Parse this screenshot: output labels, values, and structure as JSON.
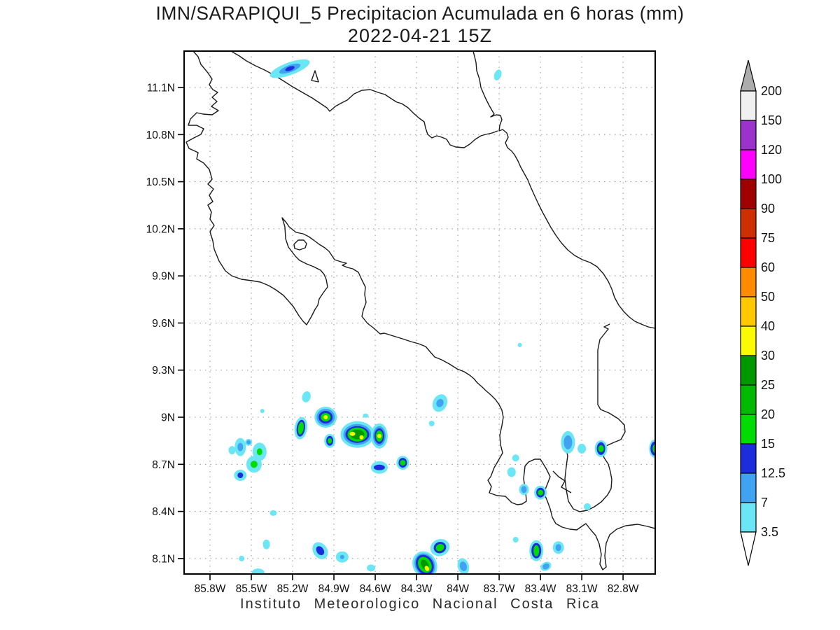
{
  "title": {
    "line1": "IMN/SARAPIQUI_5 Precipitacion Acumulada en 6 horas (mm)",
    "line2": "2022-04-21 15Z"
  },
  "footer": "Instituto Meteorologico Nacional Costa Rica",
  "axes": {
    "lat_ticks": [
      {
        "label": "11.1N",
        "deg": 11.1
      },
      {
        "label": "10.8N",
        "deg": 10.8
      },
      {
        "label": "10.5N",
        "deg": 10.5
      },
      {
        "label": "10.2N",
        "deg": 10.2
      },
      {
        "label": "9.9N",
        "deg": 9.9
      },
      {
        "label": "9.6N",
        "deg": 9.6
      },
      {
        "label": "9.3N",
        "deg": 9.3
      },
      {
        "label": "9N",
        "deg": 9.0
      },
      {
        "label": "8.7N",
        "deg": 8.7
      },
      {
        "label": "8.4N",
        "deg": 8.4
      },
      {
        "label": "8.1N",
        "deg": 8.1
      }
    ],
    "lon_ticks": [
      {
        "label": "85.8W",
        "deg": 85.8
      },
      {
        "label": "85.5W",
        "deg": 85.5
      },
      {
        "label": "85.2W",
        "deg": 85.2
      },
      {
        "label": "84.9W",
        "deg": 84.9
      },
      {
        "label": "84.6W",
        "deg": 84.6
      },
      {
        "label": "84.3W",
        "deg": 84.3
      },
      {
        "label": "84W",
        "deg": 84.0
      },
      {
        "label": "83.7W",
        "deg": 83.7
      },
      {
        "label": "83.4W",
        "deg": 83.4
      },
      {
        "label": "83.1W",
        "deg": 83.1
      },
      {
        "label": "82.8W",
        "deg": 82.8
      }
    ]
  },
  "colorbar": {
    "tick_labels_top_to_bottom": [
      "200",
      "150",
      "120",
      "100",
      "90",
      "75",
      "60",
      "50",
      "40",
      "30",
      "25",
      "20",
      "15",
      "12.5",
      "7",
      "3.5"
    ],
    "band_colors_top_to_bottom": [
      "#F0F0F0",
      "#9933CC",
      "#FF00FF",
      "#A00000",
      "#CC3000",
      "#FF0000",
      "#FF8C00",
      "#FFC800",
      "#FAFA00",
      "#009800",
      "#00BA00",
      "#00DC00",
      "#1C2DDB",
      "#42A2F2",
      "#6BE6F5"
    ],
    "over_arrow_color": "#ACACAC",
    "under_arrow_color": "#FFFFFF"
  },
  "level_colors_mm": {
    "3.5": "#6BE6F5",
    "7": "#42A2F2",
    "12.5": "#1C2DDB",
    "15": "#00DC00",
    "20": "#00BA00",
    "25": "#009800",
    "30": "#FAFA00"
  },
  "precipitation_cells": [
    {
      "lon": 85.22,
      "lat": 11.22,
      "rot": -20,
      "layers": [
        [
          3.5,
          30,
          9
        ],
        [
          7,
          16,
          5
        ],
        [
          12.5,
          7,
          3
        ]
      ]
    },
    {
      "lon": 83.71,
      "lat": 11.18,
      "rot": 20,
      "layers": [
        [
          3.5,
          5,
          8
        ]
      ]
    },
    {
      "lon": 83.55,
      "lat": 9.46,
      "rot": 0,
      "layers": [
        [
          3.5,
          3,
          3
        ]
      ]
    },
    {
      "lon": 85.1,
      "lat": 9.13,
      "rot": 15,
      "layers": [
        [
          3.5,
          6,
          8
        ]
      ]
    },
    {
      "lon": 84.96,
      "lat": 9.0,
      "rot": 0,
      "layers": [
        [
          3.5,
          16,
          15
        ],
        [
          7,
          13,
          12
        ],
        [
          12.5,
          10,
          9
        ],
        [
          15,
          7,
          6
        ],
        [
          30,
          3,
          3
        ]
      ]
    },
    {
      "lon": 85.14,
      "lat": 8.93,
      "rot": 8,
      "layers": [
        [
          3.5,
          9,
          16
        ],
        [
          12.5,
          6,
          12
        ],
        [
          15,
          4,
          9
        ]
      ]
    },
    {
      "lon": 85.42,
      "lat": 9.04,
      "rot": 0,
      "layers": [
        [
          3.5,
          3,
          3
        ]
      ]
    },
    {
      "lon": 84.93,
      "lat": 8.85,
      "rot": 0,
      "layers": [
        [
          3.5,
          8,
          10
        ],
        [
          12.5,
          5,
          7
        ],
        [
          15,
          3,
          4
        ]
      ]
    },
    {
      "lon": 84.73,
      "lat": 8.89,
      "rot": 0,
      "layers": [
        [
          3.5,
          24,
          19
        ],
        [
          7,
          20,
          15
        ],
        [
          12.5,
          17,
          12
        ],
        [
          15,
          14,
          10
        ],
        [
          25,
          10,
          7
        ],
        [
          30,
          4,
          3,
          -7,
          -1
        ],
        [
          30,
          3,
          3,
          6,
          4
        ]
      ]
    },
    {
      "lon": 84.57,
      "lat": 8.88,
      "rot": 0,
      "layers": [
        [
          3.5,
          12,
          18
        ],
        [
          7,
          9,
          14
        ],
        [
          12.5,
          7,
          11
        ],
        [
          15,
          5,
          8
        ],
        [
          30,
          3,
          3
        ]
      ]
    },
    {
      "lon": 84.13,
      "lat": 9.09,
      "rot": 25,
      "layers": [
        [
          3.5,
          10,
          13
        ],
        [
          7,
          5,
          6
        ]
      ]
    },
    {
      "lon": 84.19,
      "lat": 8.96,
      "rot": 0,
      "layers": [
        [
          3.5,
          4,
          4
        ]
      ]
    },
    {
      "lon": 84.67,
      "lat": 9.01,
      "rot": 0,
      "layers": [
        [
          3.5,
          4,
          3
        ]
      ]
    },
    {
      "lon": 85.58,
      "lat": 8.81,
      "rot": 0,
      "layers": [
        [
          3.5,
          8,
          13
        ],
        [
          7,
          4,
          6
        ]
      ]
    },
    {
      "lon": 85.64,
      "lat": 8.79,
      "rot": 0,
      "layers": [
        [
          3.5,
          5,
          6
        ]
      ]
    },
    {
      "lon": 85.52,
      "lat": 8.84,
      "rot": 0,
      "layers": [
        [
          3.5,
          5,
          5
        ],
        [
          7,
          3,
          3
        ]
      ]
    },
    {
      "lon": 85.44,
      "lat": 8.78,
      "rot": 0,
      "layers": [
        [
          3.5,
          10,
          13
        ],
        [
          15,
          4,
          5
        ]
      ]
    },
    {
      "lon": 85.48,
      "lat": 8.7,
      "rot": 0,
      "layers": [
        [
          3.5,
          11,
          12
        ],
        [
          15,
          5,
          5
        ]
      ]
    },
    {
      "lon": 85.58,
      "lat": 8.63,
      "rot": 0,
      "layers": [
        [
          3.5,
          9,
          8
        ],
        [
          12.5,
          4,
          4
        ]
      ]
    },
    {
      "lon": 84.57,
      "lat": 8.68,
      "rot": 0,
      "layers": [
        [
          3.5,
          12,
          9
        ],
        [
          12.5,
          8,
          4
        ]
      ]
    },
    {
      "lon": 84.4,
      "lat": 8.71,
      "rot": 0,
      "layers": [
        [
          3.5,
          9,
          10
        ],
        [
          12.5,
          6,
          7
        ],
        [
          15,
          4,
          4
        ]
      ]
    },
    {
      "lon": 83.2,
      "lat": 8.84,
      "rot": 0,
      "layers": [
        [
          3.5,
          10,
          16
        ],
        [
          7,
          6,
          10
        ]
      ]
    },
    {
      "lon": 83.1,
      "lat": 8.8,
      "rot": 0,
      "layers": [
        [
          3.5,
          6,
          7
        ]
      ]
    },
    {
      "lon": 82.96,
      "lat": 8.8,
      "rot": 0,
      "layers": [
        [
          3.5,
          9,
          12
        ],
        [
          12.5,
          6,
          9
        ],
        [
          15,
          4,
          5
        ]
      ]
    },
    {
      "lon": 82.57,
      "lat": 8.8,
      "rot": 0,
      "layers": [
        [
          3.5,
          8,
          13
        ],
        [
          12.5,
          6,
          10
        ],
        [
          15,
          3,
          6
        ]
      ]
    },
    {
      "lon": 83.58,
      "lat": 8.74,
      "rot": 0,
      "layers": [
        [
          3.5,
          5,
          5
        ]
      ]
    },
    {
      "lon": 83.61,
      "lat": 8.65,
      "rot": 0,
      "layers": [
        [
          3.5,
          6,
          7
        ]
      ]
    },
    {
      "lon": 83.52,
      "lat": 8.54,
      "rot": 0,
      "layers": [
        [
          3.5,
          7,
          8
        ],
        [
          7,
          4,
          5
        ]
      ]
    },
    {
      "lon": 83.4,
      "lat": 8.52,
      "rot": 0,
      "layers": [
        [
          3.5,
          9,
          10
        ],
        [
          12.5,
          6,
          7
        ],
        [
          15,
          4,
          4
        ]
      ]
    },
    {
      "lon": 83.06,
      "lat": 8.43,
      "rot": 0,
      "layers": [
        [
          3.5,
          5,
          5
        ]
      ]
    },
    {
      "lon": 85.39,
      "lat": 8.19,
      "rot": 0,
      "layers": [
        [
          3.5,
          5,
          7
        ]
      ]
    },
    {
      "lon": 85.34,
      "lat": 8.39,
      "rot": 0,
      "layers": [
        [
          3.5,
          5,
          4
        ]
      ]
    },
    {
      "lon": 85.45,
      "lat": 8.01,
      "rot": 0,
      "layers": [
        [
          3.5,
          9,
          6
        ]
      ]
    },
    {
      "lon": 85.57,
      "lat": 8.1,
      "rot": 0,
      "layers": [
        [
          3.5,
          4,
          4
        ]
      ]
    },
    {
      "lon": 85.0,
      "lat": 8.15,
      "rot": -35,
      "layers": [
        [
          3.5,
          10,
          13
        ],
        [
          12.5,
          5,
          7
        ]
      ]
    },
    {
      "lon": 84.84,
      "lat": 8.11,
      "rot": 0,
      "layers": [
        [
          3.5,
          9,
          8
        ],
        [
          7,
          3,
          3
        ]
      ]
    },
    {
      "lon": 84.63,
      "lat": 8.04,
      "rot": 0,
      "layers": [
        [
          3.5,
          6,
          5
        ]
      ]
    },
    {
      "lon": 84.13,
      "lat": 8.17,
      "rot": -20,
      "layers": [
        [
          3.5,
          14,
          12
        ],
        [
          12.5,
          9,
          8
        ],
        [
          15,
          6,
          5
        ]
      ]
    },
    {
      "lon": 84.24,
      "lat": 8.06,
      "rot": -30,
      "layers": [
        [
          3.5,
          17,
          20
        ],
        [
          7,
          14,
          17
        ],
        [
          12.5,
          12,
          15
        ],
        [
          15,
          9,
          12
        ],
        [
          25,
          5,
          8
        ],
        [
          30,
          3,
          4,
          0,
          6
        ]
      ]
    },
    {
      "lon": 83.96,
      "lat": 8.05,
      "rot": -15,
      "layers": [
        [
          3.5,
          8,
          12
        ],
        [
          7,
          5,
          7
        ]
      ]
    },
    {
      "lon": 83.58,
      "lat": 8.22,
      "rot": 0,
      "layers": [
        [
          3.5,
          4,
          4
        ]
      ]
    },
    {
      "lon": 83.43,
      "lat": 8.15,
      "rot": 0,
      "layers": [
        [
          3.5,
          10,
          15
        ],
        [
          12.5,
          7,
          11
        ],
        [
          15,
          4,
          8
        ]
      ]
    },
    {
      "lon": 83.36,
      "lat": 8.05,
      "rot": -30,
      "layers": [
        [
          3.5,
          8,
          6
        ],
        [
          7,
          5,
          4
        ]
      ]
    },
    {
      "lon": 83.27,
      "lat": 8.17,
      "rot": 0,
      "layers": [
        [
          3.5,
          8,
          9
        ],
        [
          7,
          4,
          5
        ]
      ]
    }
  ]
}
